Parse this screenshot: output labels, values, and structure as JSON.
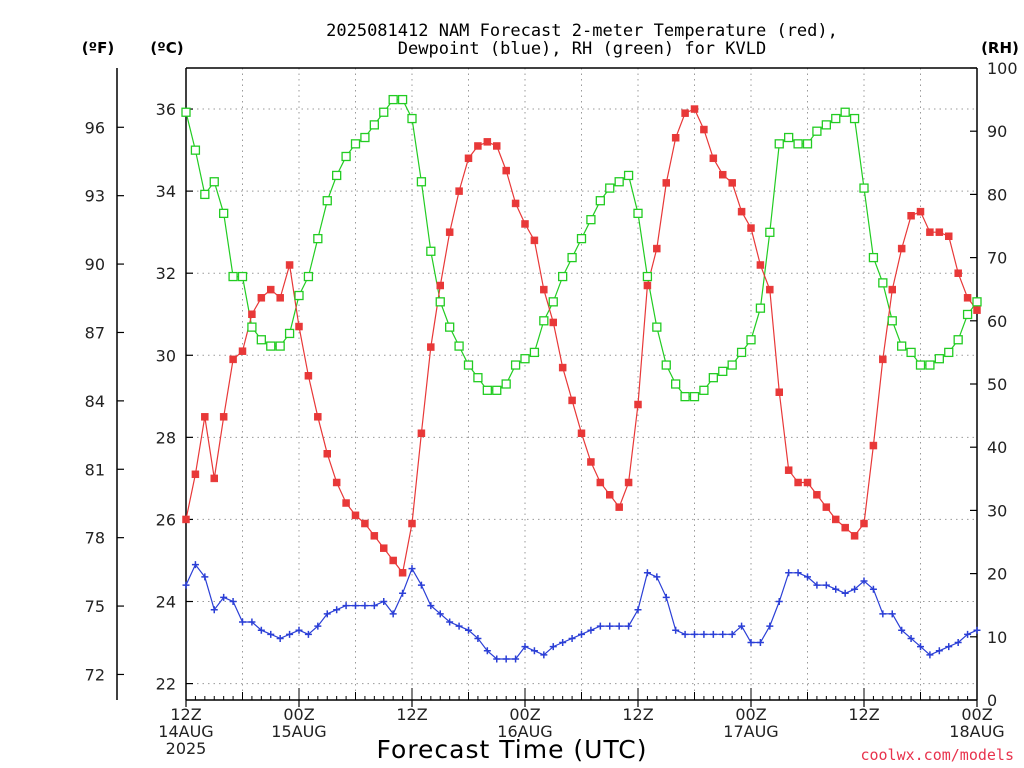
{
  "chart_data": {
    "type": "line",
    "title": "2025081412 NAM Forecast 2-meter Temperature (red),",
    "subtitle": "Dewpoint (blue), RH (green) for KVLD",
    "xlabel": "Forecast Time (UTC)",
    "credit": "coolwx.com/models",
    "units": {
      "f": "(ºF)",
      "c": "(ºC)",
      "rh": "(RH)"
    },
    "x_range": [
      0,
      84
    ],
    "x_ticks": [
      {
        "h": 0,
        "l1": "12Z",
        "l2": "14AUG",
        "l3": "2025"
      },
      {
        "h": 12,
        "l1": "00Z",
        "l2": "15AUG",
        "l3": ""
      },
      {
        "h": 24,
        "l1": "12Z",
        "l2": "",
        "l3": ""
      },
      {
        "h": 36,
        "l1": "00Z",
        "l2": "16AUG",
        "l3": ""
      },
      {
        "h": 48,
        "l1": "12Z",
        "l2": "",
        "l3": ""
      },
      {
        "h": 60,
        "l1": "00Z",
        "l2": "17AUG",
        "l3": ""
      },
      {
        "h": 72,
        "l1": "12Z",
        "l2": "",
        "l3": ""
      },
      {
        "h": 84,
        "l1": "00Z",
        "l2": "18AUG",
        "l3": ""
      }
    ],
    "y_c": {
      "range": [
        21.6,
        37.0
      ],
      "ticks": [
        22,
        24,
        26,
        28,
        30,
        32,
        34,
        36
      ]
    },
    "y_f": {
      "ticks": [
        72,
        75,
        78,
        81,
        84,
        87,
        90,
        93,
        96
      ]
    },
    "y_rh": {
      "range": [
        0,
        100
      ],
      "ticks": [
        0,
        10,
        20,
        30,
        40,
        50,
        60,
        70,
        80,
        90,
        100
      ]
    },
    "grid": true,
    "colors": {
      "temperature": "#e83838",
      "dewpoint": "#2b3fd6",
      "rh": "#22cc22"
    },
    "series": [
      {
        "name": "Temperature (red)",
        "unit": "C",
        "x": [
          0,
          1,
          2,
          3,
          4,
          5,
          6,
          7,
          8,
          9,
          10,
          11,
          12,
          13,
          14,
          15,
          16,
          17,
          18,
          19,
          20,
          21,
          22,
          23,
          24,
          25,
          26,
          27,
          28,
          29,
          30,
          31,
          32,
          33,
          34,
          35,
          36,
          37,
          38,
          39,
          40,
          41,
          42,
          43,
          44,
          45,
          46,
          47,
          48,
          49,
          50,
          51,
          52,
          53,
          54,
          55,
          56,
          57,
          58,
          59,
          60,
          61,
          62,
          63,
          64,
          65,
          66,
          67,
          68,
          69,
          70,
          71,
          72,
          73,
          74,
          75,
          76,
          77,
          78,
          79,
          80,
          81,
          82,
          83,
          84
        ],
        "values": [
          26.0,
          27.1,
          28.5,
          27.0,
          28.5,
          29.9,
          30.1,
          31.0,
          31.4,
          31.6,
          31.4,
          32.2,
          30.7,
          29.5,
          28.5,
          27.6,
          26.9,
          26.4,
          26.1,
          25.9,
          25.6,
          25.3,
          25.0,
          24.7,
          25.9,
          28.1,
          30.2,
          31.7,
          33.0,
          34.0,
          34.8,
          35.1,
          35.2,
          35.1,
          34.5,
          33.7,
          33.2,
          32.8,
          31.6,
          30.8,
          29.7,
          28.9,
          28.1,
          27.4,
          26.9,
          26.6,
          26.3,
          26.9,
          28.8,
          31.7,
          32.6,
          34.2,
          35.3,
          35.9,
          36.0,
          35.5,
          34.8,
          34.4,
          34.2,
          33.5,
          33.1,
          32.2,
          31.6,
          29.1,
          27.2,
          26.9,
          26.9,
          26.6,
          26.3,
          26.0,
          25.8,
          25.6,
          25.9,
          27.8,
          29.9,
          31.6,
          32.6,
          33.4,
          33.5,
          33.0,
          33.0,
          32.9,
          32.0,
          31.4,
          31.1
        ]
      },
      {
        "name": "Dewpoint (blue)",
        "unit": "C",
        "x": [
          0,
          1,
          2,
          3,
          4,
          5,
          6,
          7,
          8,
          9,
          10,
          11,
          12,
          13,
          14,
          15,
          16,
          17,
          18,
          19,
          20,
          21,
          22,
          23,
          24,
          25,
          26,
          27,
          28,
          29,
          30,
          31,
          32,
          33,
          34,
          35,
          36,
          37,
          38,
          39,
          40,
          41,
          42,
          43,
          44,
          45,
          46,
          47,
          48,
          49,
          50,
          51,
          52,
          53,
          54,
          55,
          56,
          57,
          58,
          59,
          60,
          61,
          62,
          63,
          64,
          65,
          66,
          67,
          68,
          69,
          70,
          71,
          72,
          73,
          74,
          75,
          76,
          77,
          78,
          79,
          80,
          81,
          82,
          83,
          84
        ],
        "values": [
          24.4,
          24.9,
          24.6,
          23.8,
          24.1,
          24.0,
          23.5,
          23.5,
          23.3,
          23.2,
          23.1,
          23.2,
          23.3,
          23.2,
          23.4,
          23.7,
          23.8,
          23.9,
          23.9,
          23.9,
          23.9,
          24.0,
          23.7,
          24.2,
          24.8,
          24.4,
          23.9,
          23.7,
          23.5,
          23.4,
          23.3,
          23.1,
          22.8,
          22.6,
          22.6,
          22.6,
          22.9,
          22.8,
          22.7,
          22.9,
          23.0,
          23.1,
          23.2,
          23.3,
          23.4,
          23.4,
          23.4,
          23.4,
          23.8,
          24.7,
          24.6,
          24.1,
          23.3,
          23.2,
          23.2,
          23.2,
          23.2,
          23.2,
          23.2,
          23.4,
          23.0,
          23.0,
          23.4,
          24.0,
          24.7,
          24.7,
          24.6,
          24.4,
          24.4,
          24.3,
          24.2,
          24.3,
          24.5,
          24.3,
          23.7,
          23.7,
          23.3,
          23.1,
          22.9,
          22.7,
          22.8,
          22.9,
          23.0,
          23.2,
          23.3
        ]
      },
      {
        "name": "RH (green)",
        "unit": "%",
        "x": [
          0,
          1,
          2,
          3,
          4,
          5,
          6,
          7,
          8,
          9,
          10,
          11,
          12,
          13,
          14,
          15,
          16,
          17,
          18,
          19,
          20,
          21,
          22,
          23,
          24,
          25,
          26,
          27,
          28,
          29,
          30,
          31,
          32,
          33,
          34,
          35,
          36,
          37,
          38,
          39,
          40,
          41,
          42,
          43,
          44,
          45,
          46,
          47,
          48,
          49,
          50,
          51,
          52,
          53,
          54,
          55,
          56,
          57,
          58,
          59,
          60,
          61,
          62,
          63,
          64,
          65,
          66,
          67,
          68,
          69,
          70,
          71,
          72,
          73,
          74,
          75,
          76,
          77,
          78,
          79,
          80,
          81,
          82,
          83,
          84
        ],
        "values": [
          93,
          87,
          80,
          82,
          77,
          67,
          67,
          59,
          57,
          56,
          56,
          58,
          64,
          67,
          73,
          79,
          83,
          86,
          88,
          89,
          91,
          93,
          95,
          95,
          92,
          82,
          71,
          63,
          59,
          56,
          53,
          51,
          49,
          49,
          50,
          53,
          54,
          55,
          60,
          63,
          67,
          70,
          73,
          76,
          79,
          81,
          82,
          83,
          77,
          67,
          59,
          53,
          50,
          48,
          48,
          49,
          51,
          52,
          53,
          55,
          57,
          62,
          74,
          88,
          89,
          88,
          88,
          90,
          91,
          92,
          93,
          92,
          81,
          70,
          66,
          60,
          56,
          55,
          53,
          53,
          54,
          55,
          57,
          61,
          63
        ]
      }
    ]
  }
}
